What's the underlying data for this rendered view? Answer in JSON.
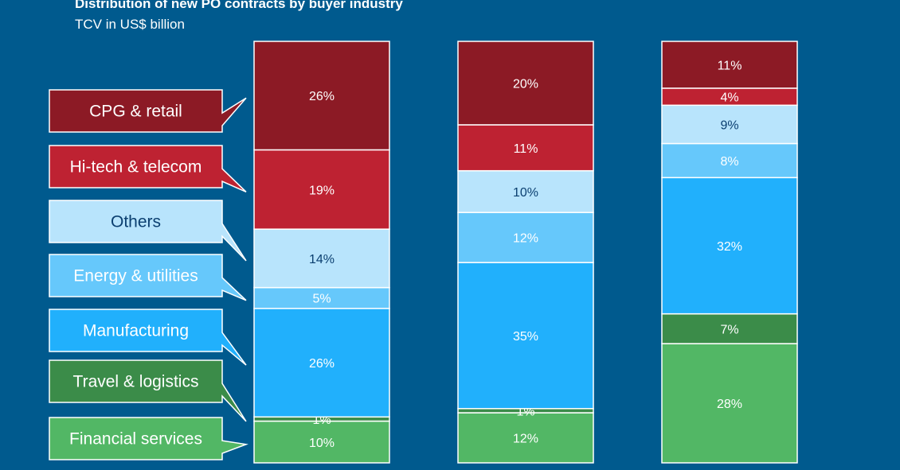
{
  "header": {
    "title": "Distribution of new PO contracts by buyer industry",
    "subtitle": "TCV in US$ billion"
  },
  "chart_data": {
    "type": "bar",
    "stacked": true,
    "orientation": "vertical-100-percent",
    "categories": [
      "",
      "",
      ""
    ],
    "series": [
      {
        "name": "Financial services",
        "color": "#52b765",
        "text_color": "#ffffff",
        "values": [
          10,
          12,
          28
        ]
      },
      {
        "name": "Travel & logistics",
        "color": "#3b8c49",
        "text_color": "#ffffff",
        "values": [
          1,
          1,
          7
        ]
      },
      {
        "name": "Manufacturing",
        "color": "#21b0fc",
        "text_color": "#ffffff",
        "values": [
          26,
          35,
          32
        ]
      },
      {
        "name": "Energy & utilities",
        "color": "#66c8fb",
        "text_color": "#ffffff",
        "values": [
          5,
          12,
          8
        ]
      },
      {
        "name": "Others",
        "color": "#b8e4fc",
        "text_color": "#0b3f70",
        "values": [
          14,
          10,
          9
        ]
      },
      {
        "name": "Hi-tech & telecom",
        "color": "#be2232",
        "text_color": "#ffffff",
        "values": [
          19,
          11,
          4
        ]
      },
      {
        "name": "CPG & retail",
        "color": "#8c1a25",
        "text_color": "#ffffff",
        "values": [
          26,
          20,
          11
        ]
      }
    ],
    "value_suffix": "%",
    "ylim": [
      0,
      100
    ],
    "grid": false,
    "legend": "left, callout boxes pointing to first column"
  }
}
